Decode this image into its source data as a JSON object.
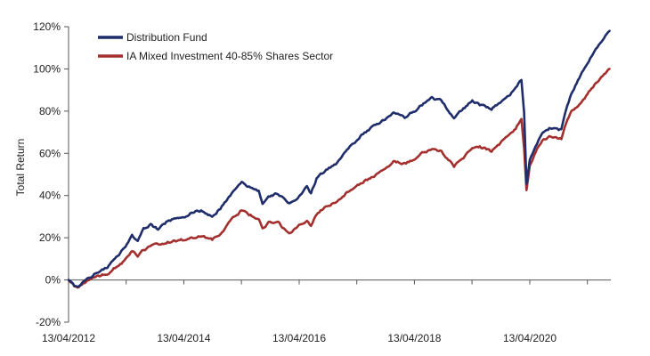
{
  "chart_data": {
    "type": "line",
    "title": "",
    "xlabel": "",
    "ylabel": "Total Return",
    "x_tick_labels": [
      "13/04/2012",
      "13/04/2014",
      "13/04/2016",
      "13/04/2018",
      "13/04/2020"
    ],
    "x_tick_dates": [
      "2012-04-13",
      "2014-04-13",
      "2016-04-13",
      "2018-04-13",
      "2020-04-13"
    ],
    "x_range": [
      "2012-04-13",
      "2021-08-31"
    ],
    "ylim": [
      -20,
      120
    ],
    "y_ticks": [
      -20,
      0,
      20,
      40,
      60,
      80,
      100,
      120
    ],
    "y_tick_labels": [
      "-20%",
      "0%",
      "20%",
      "40%",
      "60%",
      "80%",
      "100%",
      "120%"
    ],
    "grid": false,
    "legend_position": "top-left",
    "series": [
      {
        "name": "Distribution Fund",
        "color": "#1f2d6b",
        "points": [
          [
            "2012-04-13",
            0
          ],
          [
            "2012-05-20",
            -3
          ],
          [
            "2012-06-10",
            -3.5
          ],
          [
            "2012-07-15",
            -1
          ],
          [
            "2012-08-20",
            1
          ],
          [
            "2012-10-01",
            3
          ],
          [
            "2012-12-15",
            6
          ],
          [
            "2013-02-01",
            10
          ],
          [
            "2013-04-01",
            15
          ],
          [
            "2013-05-20",
            21
          ],
          [
            "2013-06-25",
            18
          ],
          [
            "2013-08-01",
            24
          ],
          [
            "2013-09-15",
            26
          ],
          [
            "2013-11-01",
            24
          ],
          [
            "2014-01-01",
            28
          ],
          [
            "2014-04-13",
            30
          ],
          [
            "2014-06-01",
            32
          ],
          [
            "2014-08-01",
            33
          ],
          [
            "2014-10-10",
            30
          ],
          [
            "2014-12-01",
            34
          ],
          [
            "2015-02-01",
            40
          ],
          [
            "2015-04-15",
            46
          ],
          [
            "2015-06-01",
            44
          ],
          [
            "2015-08-01",
            42
          ],
          [
            "2015-08-25",
            36
          ],
          [
            "2015-10-01",
            40
          ],
          [
            "2015-12-01",
            41
          ],
          [
            "2016-02-10",
            36
          ],
          [
            "2016-04-13",
            40
          ],
          [
            "2016-06-01",
            44
          ],
          [
            "2016-06-27",
            41
          ],
          [
            "2016-08-01",
            48
          ],
          [
            "2016-10-01",
            52
          ],
          [
            "2016-12-01",
            55
          ],
          [
            "2017-02-01",
            61
          ],
          [
            "2017-04-01",
            65
          ],
          [
            "2017-06-01",
            70
          ],
          [
            "2017-08-01",
            73
          ],
          [
            "2017-10-01",
            76
          ],
          [
            "2017-12-01",
            79
          ],
          [
            "2018-02-10",
            77
          ],
          [
            "2018-04-13",
            80
          ],
          [
            "2018-06-01",
            83
          ],
          [
            "2018-08-01",
            86
          ],
          [
            "2018-10-01",
            85
          ],
          [
            "2018-12-20",
            77
          ],
          [
            "2019-02-01",
            80
          ],
          [
            "2019-04-15",
            85
          ],
          [
            "2019-06-01",
            83
          ],
          [
            "2019-08-15",
            81
          ],
          [
            "2019-10-01",
            84
          ],
          [
            "2019-12-01",
            87
          ],
          [
            "2020-01-15",
            91
          ],
          [
            "2020-02-20",
            95
          ],
          [
            "2020-03-08",
            80
          ],
          [
            "2020-03-23",
            46
          ],
          [
            "2020-04-13",
            57
          ],
          [
            "2020-05-20",
            63
          ],
          [
            "2020-07-01",
            70
          ],
          [
            "2020-08-15",
            72
          ],
          [
            "2020-10-30",
            71
          ],
          [
            "2020-11-20",
            78
          ],
          [
            "2021-01-01",
            88
          ],
          [
            "2021-03-01",
            97
          ],
          [
            "2021-05-01",
            105
          ],
          [
            "2021-06-15",
            110
          ],
          [
            "2021-08-31",
            118
          ]
        ]
      },
      {
        "name": "IA Mixed Investment 40-85% Shares Sector",
        "color": "#a3302e",
        "points": [
          [
            "2012-04-13",
            0
          ],
          [
            "2012-05-20",
            -3
          ],
          [
            "2012-06-10",
            -3.5
          ],
          [
            "2012-07-15",
            -1.5
          ],
          [
            "2012-08-20",
            0
          ],
          [
            "2012-10-01",
            1.5
          ],
          [
            "2012-12-15",
            3
          ],
          [
            "2013-02-01",
            6
          ],
          [
            "2013-04-01",
            9
          ],
          [
            "2013-05-20",
            14
          ],
          [
            "2013-06-25",
            11
          ],
          [
            "2013-08-01",
            14
          ],
          [
            "2013-09-15",
            16
          ],
          [
            "2013-11-01",
            17
          ],
          [
            "2014-01-01",
            18
          ],
          [
            "2014-04-13",
            19
          ],
          [
            "2014-06-01",
            20
          ],
          [
            "2014-08-01",
            21
          ],
          [
            "2014-10-10",
            19
          ],
          [
            "2014-12-01",
            22
          ],
          [
            "2015-02-01",
            28
          ],
          [
            "2015-04-15",
            33
          ],
          [
            "2015-06-01",
            31
          ],
          [
            "2015-08-01",
            29
          ],
          [
            "2015-08-25",
            24
          ],
          [
            "2015-10-01",
            27
          ],
          [
            "2015-12-01",
            27
          ],
          [
            "2016-02-10",
            22
          ],
          [
            "2016-04-13",
            26
          ],
          [
            "2016-06-01",
            28
          ],
          [
            "2016-06-27",
            26
          ],
          [
            "2016-08-01",
            31
          ],
          [
            "2016-10-01",
            35
          ],
          [
            "2016-12-01",
            37
          ],
          [
            "2017-02-01",
            41
          ],
          [
            "2017-04-01",
            44
          ],
          [
            "2017-06-01",
            47
          ],
          [
            "2017-08-01",
            49
          ],
          [
            "2017-10-01",
            52
          ],
          [
            "2017-12-01",
            56
          ],
          [
            "2018-02-10",
            55
          ],
          [
            "2018-04-13",
            57
          ],
          [
            "2018-06-01",
            60
          ],
          [
            "2018-08-01",
            62
          ],
          [
            "2018-10-01",
            61
          ],
          [
            "2018-12-20",
            54
          ],
          [
            "2019-02-01",
            57
          ],
          [
            "2019-04-15",
            62
          ],
          [
            "2019-06-01",
            63
          ],
          [
            "2019-08-15",
            61
          ],
          [
            "2019-10-01",
            64
          ],
          [
            "2019-12-01",
            69
          ],
          [
            "2020-01-15",
            72
          ],
          [
            "2020-02-20",
            76
          ],
          [
            "2020-03-08",
            62
          ],
          [
            "2020-03-23",
            42
          ],
          [
            "2020-04-13",
            54
          ],
          [
            "2020-05-20",
            61
          ],
          [
            "2020-07-01",
            66
          ],
          [
            "2020-08-15",
            68
          ],
          [
            "2020-10-30",
            67
          ],
          [
            "2020-11-20",
            73
          ],
          [
            "2021-01-01",
            80
          ],
          [
            "2021-03-01",
            84
          ],
          [
            "2021-05-01",
            90
          ],
          [
            "2021-06-15",
            94
          ],
          [
            "2021-08-31",
            100
          ]
        ]
      }
    ]
  }
}
